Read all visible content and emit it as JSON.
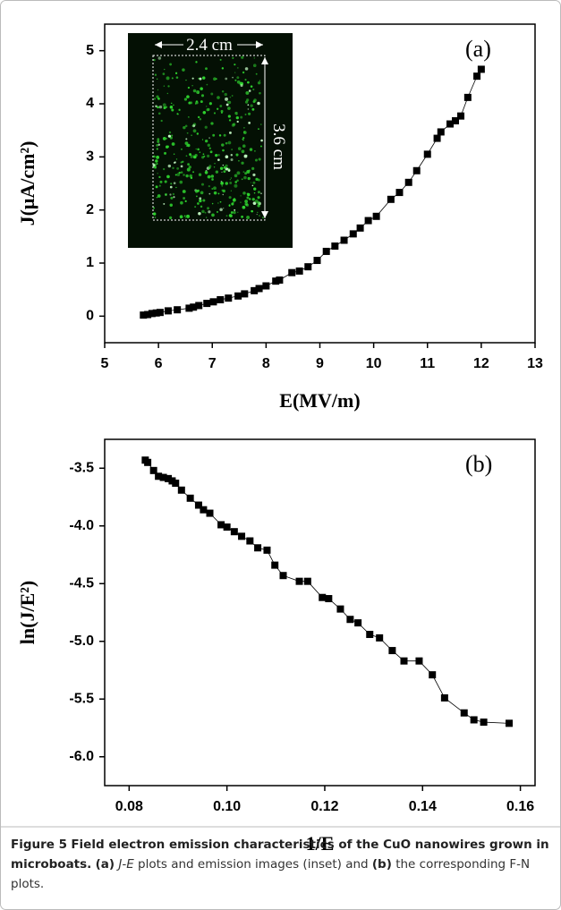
{
  "chart_data": [
    {
      "type": "scatter",
      "annotation": "(a)",
      "x_label": "E(MV/m)",
      "y_label": "J(μA/cm²)",
      "inset_width_label": "2.4 cm",
      "inset_height_label": "3.6 cm",
      "color": "#000000",
      "connected": true,
      "x": [
        5.72,
        5.8,
        5.88,
        5.96,
        6.03,
        6.18,
        6.35,
        6.57,
        6.65,
        6.75,
        6.9,
        7.02,
        7.15,
        7.3,
        7.48,
        7.6,
        7.78,
        7.87,
        8.0,
        8.18,
        8.25,
        8.48,
        8.62,
        8.78,
        8.95,
        9.12,
        9.28,
        9.45,
        9.62,
        9.75,
        9.9,
        10.05,
        10.32,
        10.48,
        10.65,
        10.8,
        11.0,
        11.18,
        11.25,
        11.42,
        11.52,
        11.62,
        11.75,
        11.92,
        12.0
      ],
      "values": [
        0.02,
        0.03,
        0.05,
        0.06,
        0.07,
        0.1,
        0.12,
        0.15,
        0.17,
        0.2,
        0.24,
        0.27,
        0.31,
        0.34,
        0.38,
        0.42,
        0.48,
        0.52,
        0.57,
        0.66,
        0.68,
        0.82,
        0.85,
        0.93,
        1.05,
        1.22,
        1.32,
        1.43,
        1.55,
        1.66,
        1.8,
        1.88,
        2.2,
        2.33,
        2.52,
        2.74,
        3.05,
        3.35,
        3.47,
        3.62,
        3.68,
        3.77,
        4.12,
        4.52,
        4.65
      ],
      "xlim": [
        5,
        13
      ],
      "xticks": [
        5,
        6,
        7,
        8,
        9,
        10,
        11,
        12,
        13
      ],
      "ylim": [
        -0.5,
        5.5
      ],
      "yticks": [
        0,
        1,
        2,
        3,
        4,
        5
      ]
    },
    {
      "type": "scatter",
      "annotation": "(b)",
      "x_label": "1/E",
      "y_label": "ln(J/E²)",
      "color": "#000000",
      "connected": true,
      "x": [
        0.0833,
        0.0838,
        0.085,
        0.086,
        0.087,
        0.088,
        0.0888,
        0.0895,
        0.0907,
        0.0925,
        0.0942,
        0.0952,
        0.0965,
        0.0988,
        0.1,
        0.1015,
        0.103,
        0.1047,
        0.1063,
        0.1082,
        0.1098,
        0.1115,
        0.1148,
        0.1165,
        0.1195,
        0.1208,
        0.1232,
        0.1252,
        0.1268,
        0.1292,
        0.1312,
        0.1338,
        0.1362,
        0.1393,
        0.142,
        0.1445,
        0.1485,
        0.1505,
        0.1525,
        0.1577
      ],
      "values": [
        -3.43,
        -3.45,
        -3.52,
        -3.57,
        -3.58,
        -3.59,
        -3.61,
        -3.63,
        -3.69,
        -3.76,
        -3.82,
        -3.86,
        -3.89,
        -3.99,
        -4.01,
        -4.05,
        -4.09,
        -4.13,
        -4.19,
        -4.21,
        -4.34,
        -4.43,
        -4.48,
        -4.48,
        -4.62,
        -4.63,
        -4.72,
        -4.81,
        -4.84,
        -4.94,
        -4.97,
        -5.08,
        -5.17,
        -5.17,
        -5.29,
        -5.49,
        -5.62,
        -5.68,
        -5.7,
        -5.71
      ],
      "xlim": [
        0.075,
        0.163
      ],
      "xticks": [
        0.08,
        {
          "value": 0.1,
          "label": "0.10"
        },
        0.12,
        0.14,
        0.16
      ],
      "ylim": [
        -6.25,
        -3.25
      ],
      "yticks": [
        -3.5,
        {
          "value": -4,
          "label": "-4.0"
        },
        -4.5,
        {
          "value": -5,
          "label": "-5.0"
        },
        -5.5,
        {
          "value": -6,
          "label": "-6.0"
        }
      ]
    }
  ],
  "caption": {
    "label": "Figure 5",
    "title": "Field electron emission characteristics of the CuO nanowires grown in microboats.",
    "body": [
      "(a)",
      "J-E",
      "plots and emission images (inset) and",
      "(b)",
      "the corresponding F-N plots."
    ]
  }
}
